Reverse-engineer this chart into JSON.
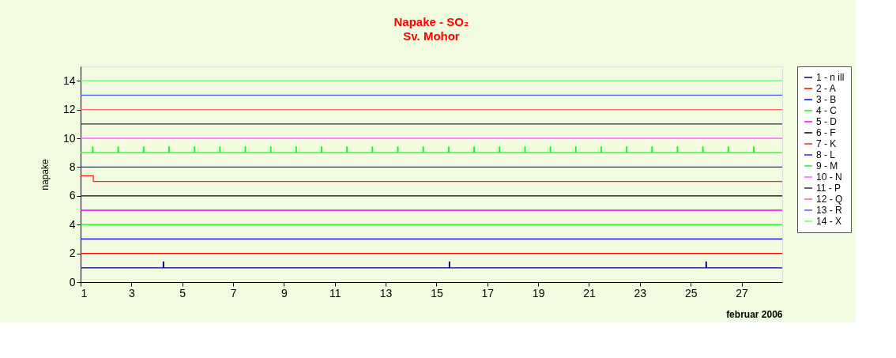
{
  "chart_data": {
    "type": "line",
    "title": "Napake - SO₂",
    "subtitle": "Sv. Mohor",
    "xlabel": "februar 2006",
    "ylabel": "napake",
    "xlim": [
      1,
      28.6
    ],
    "xticks": [
      1,
      3,
      5,
      7,
      9,
      11,
      13,
      15,
      17,
      19,
      21,
      23,
      25,
      27
    ],
    "ylim": [
      0,
      15
    ],
    "yticks": [
      0,
      2,
      4,
      6,
      8,
      10,
      12,
      14
    ],
    "legend": "right",
    "grid": false,
    "marker": "none",
    "line_style": "solid",
    "series": [
      {
        "name": "1 - n ill",
        "color": "#000080",
        "x": [
          1,
          4.25,
          4.25,
          4.27,
          4.27,
          15.5,
          15.5,
          15.52,
          15.52,
          25.6,
          25.6,
          25.62,
          25.62,
          28.6
        ],
        "values": [
          1,
          1,
          1.4,
          1.4,
          1,
          1,
          1.4,
          1.4,
          1,
          1,
          1.4,
          1.4,
          1,
          1
        ]
      },
      {
        "name": "2 - A",
        "color": "#ff0000",
        "x": [
          1,
          28.6
        ],
        "values": [
          2,
          2
        ]
      },
      {
        "name": "3 - B",
        "color": "#0000ff",
        "x": [
          1,
          28.6
        ],
        "values": [
          3,
          3
        ]
      },
      {
        "name": "4 - C",
        "color": "#00ff00",
        "x": [
          1,
          28.6
        ],
        "values": [
          4,
          4
        ]
      },
      {
        "name": "5 - D",
        "color": "#ff00ff",
        "x": [
          1,
          28.6
        ],
        "values": [
          5,
          5
        ]
      },
      {
        "name": "6 - F",
        "color": "#000000",
        "x": [
          1,
          28.6
        ],
        "values": [
          6,
          6
        ]
      },
      {
        "name": "7 - K",
        "color": "#ff2020",
        "x": [
          1,
          1.5,
          1.5,
          28.6
        ],
        "values": [
          7.4,
          7.4,
          7,
          7
        ]
      },
      {
        "name": "8 - L",
        "color": "#2020ff",
        "x": [
          1,
          28.6
        ],
        "values": [
          8,
          8
        ]
      },
      {
        "name": "9 - M",
        "color": "#10ff10",
        "x": [
          1,
          1.47,
          1.47,
          1.49,
          1.49,
          2.47,
          2.47,
          2.49,
          2.49,
          3.47,
          3.47,
          3.49,
          3.49,
          4.47,
          4.47,
          4.49,
          4.49,
          5.47,
          5.47,
          5.49,
          5.49,
          6.47,
          6.47,
          6.49,
          6.49,
          7.47,
          7.47,
          7.49,
          7.49,
          8.47,
          8.47,
          8.49,
          8.49,
          9.47,
          9.47,
          9.49,
          9.49,
          10.47,
          10.47,
          10.49,
          10.49,
          11.47,
          11.47,
          11.49,
          11.49,
          12.47,
          12.47,
          12.49,
          12.49,
          13.47,
          13.47,
          13.49,
          13.49,
          14.47,
          14.47,
          14.49,
          14.49,
          15.47,
          15.47,
          15.49,
          15.49,
          16.47,
          16.47,
          16.49,
          16.49,
          17.47,
          17.47,
          17.49,
          17.49,
          18.47,
          18.47,
          18.49,
          18.49,
          19.47,
          19.47,
          19.49,
          19.49,
          20.47,
          20.47,
          20.49,
          20.49,
          21.47,
          21.47,
          21.49,
          21.49,
          22.47,
          22.47,
          22.49,
          22.49,
          23.47,
          23.47,
          23.49,
          23.49,
          24.47,
          24.47,
          24.49,
          24.49,
          25.47,
          25.47,
          25.49,
          25.49,
          26.47,
          26.47,
          26.49,
          26.49,
          27.47,
          27.47,
          27.49,
          27.49,
          28.6
        ],
        "values": [
          9,
          9,
          9.4,
          9.4,
          9,
          9,
          9.4,
          9.4,
          9,
          9,
          9.4,
          9.4,
          9,
          9,
          9.4,
          9.4,
          9,
          9,
          9.4,
          9.4,
          9,
          9,
          9.4,
          9.4,
          9,
          9,
          9.4,
          9.4,
          9,
          9,
          9.4,
          9.4,
          9,
          9,
          9.4,
          9.4,
          9,
          9,
          9.4,
          9.4,
          9,
          9,
          9.4,
          9.4,
          9,
          9,
          9.4,
          9.4,
          9,
          9,
          9.4,
          9.4,
          9,
          9,
          9.4,
          9.4,
          9,
          9,
          9.4,
          9.4,
          9,
          9,
          9.4,
          9.4,
          9,
          9,
          9.4,
          9.4,
          9,
          9,
          9.4,
          9.4,
          9,
          9,
          9.4,
          9.4,
          9,
          9,
          9.4,
          9.4,
          9,
          9,
          9.4,
          9.4,
          9,
          9,
          9.4,
          9.4,
          9,
          9,
          9.4,
          9.4,
          9,
          9,
          9.4,
          9.4,
          9,
          9,
          9.4,
          9.4,
          9,
          9,
          9.4,
          9.4,
          9,
          9,
          9.4,
          9.4,
          9,
          9
        ]
      },
      {
        "name": "10 - N",
        "color": "#ff66ff",
        "x": [
          1,
          28.6
        ],
        "values": [
          10,
          10
        ]
      },
      {
        "name": "11 - P",
        "color": "#333333",
        "x": [
          1,
          28.6
        ],
        "values": [
          11,
          11
        ]
      },
      {
        "name": "12 - Q",
        "color": "#ff6666",
        "x": [
          1,
          28.6
        ],
        "values": [
          12,
          12
        ]
      },
      {
        "name": "13 - R",
        "color": "#4060ff",
        "x": [
          1,
          28.6
        ],
        "values": [
          13,
          13
        ]
      },
      {
        "name": "14 - X",
        "color": "#66ff66",
        "x": [
          1,
          28.6
        ],
        "values": [
          14,
          14
        ]
      }
    ]
  }
}
